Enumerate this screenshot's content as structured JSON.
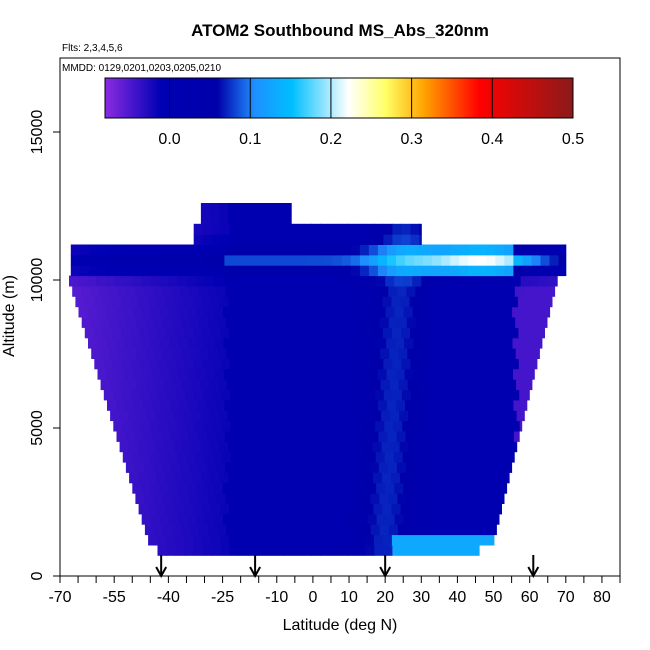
{
  "chart_data": {
    "type": "heatmap",
    "title": "ATOM2 Southbound MS_Abs_320nm",
    "flights_label": "Flts: 2,3,4,5,6",
    "dates_label": "MMDD: 0129,0201,0203,0205,0210",
    "xlabel": "Latitude (deg N)",
    "ylabel": "Altitude (m)",
    "xlim": [
      -70,
      85
    ],
    "ylim": [
      0,
      17500
    ],
    "x_ticks": [
      -70,
      -55,
      -40,
      -25,
      -10,
      0,
      10,
      20,
      30,
      40,
      50,
      60,
      70,
      80
    ],
    "y_ticks": [
      0,
      5000,
      10000,
      15000
    ],
    "colorbar": {
      "range": [
        -0.08,
        0.5
      ],
      "ticks": [
        "0.0",
        "0.1",
        "0.2",
        "0.3",
        "0.4",
        "0.5"
      ],
      "tick_values": [
        0.0,
        0.1,
        0.2,
        0.3,
        0.4,
        0.5
      ],
      "colors": [
        "#8a2be2",
        "#0000aa",
        "#1e90ff",
        "#00bfff",
        "#ffffff",
        "#ffff66",
        "#ffa500",
        "#ff0000",
        "#8b1a1a"
      ]
    },
    "arrows_latitude": [
      -42,
      -16,
      20,
      61
    ],
    "grid": false,
    "legend": "top-inside"
  }
}
